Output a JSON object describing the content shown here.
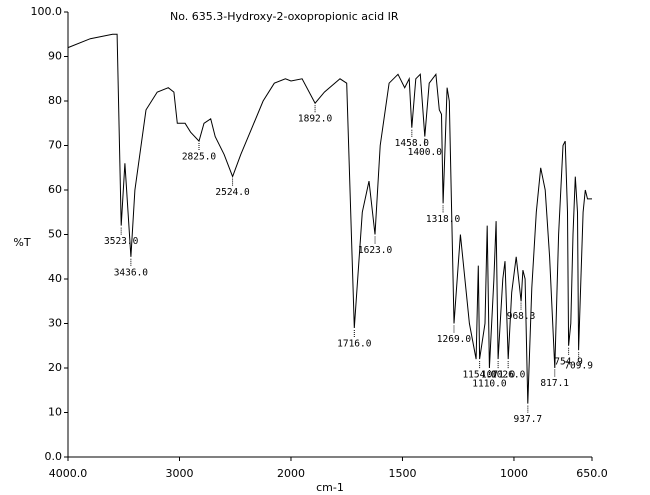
{
  "chart_data": {
    "type": "line",
    "title": "No. 635.3-Hydroxy-2-oxopropionic acid IR",
    "x_label": "cm-1",
    "y_label": "%T",
    "color": "#000000",
    "x_break": 2000,
    "xlim": [
      4000,
      650
    ],
    "ylim": [
      0,
      100
    ],
    "xticks": [
      {
        "value": 4000,
        "label": "4000.0"
      },
      3000,
      2000,
      1500,
      1000,
      {
        "value": 650,
        "label": "650.0"
      }
    ],
    "yticks": [
      {
        "value": 100,
        "label": "100.0"
      },
      90,
      80,
      70,
      60,
      50,
      40,
      30,
      20,
      10,
      {
        "value": 0,
        "label": "0.0"
      }
    ],
    "x": [
      4000,
      3800,
      3600,
      3560,
      3523,
      3490,
      3436,
      3400,
      3300,
      3200,
      3100,
      3050,
      3020,
      2950,
      2900,
      2825,
      2780,
      2720,
      2680,
      2600,
      2524,
      2450,
      2350,
      2250,
      2150,
      2050,
      2000,
      1950,
      1892,
      1850,
      1780,
      1750,
      1716,
      1680,
      1650,
      1623,
      1600,
      1560,
      1520,
      1490,
      1470,
      1458,
      1440,
      1420,
      1400,
      1380,
      1350,
      1335,
      1325,
      1318,
      1300,
      1290,
      1269,
      1240,
      1200,
      1170,
      1160,
      1154,
      1130,
      1120,
      1110,
      1090,
      1080,
      1071,
      1050,
      1040,
      1026,
      1010,
      990,
      968,
      960,
      950,
      937.7,
      920,
      900,
      880,
      860,
      840,
      817,
      800,
      780,
      770,
      760,
      754.9,
      745,
      735,
      725,
      715,
      709.9,
      700,
      690,
      680,
      670,
      650
    ],
    "values": [
      92,
      94,
      95,
      95,
      52,
      66,
      45,
      60,
      78,
      82,
      83,
      82,
      75,
      75,
      73,
      71,
      75,
      76,
      72,
      68,
      63,
      68,
      74,
      80,
      84,
      85,
      84.5,
      85,
      79.5,
      82,
      85,
      84,
      29,
      55,
      62,
      50,
      70,
      84,
      86,
      83,
      85,
      74,
      85,
      86,
      72,
      84,
      86,
      78,
      77,
      57,
      83,
      80,
      30,
      50,
      30,
      22,
      43,
      22,
      30,
      52,
      20,
      40,
      53,
      22,
      40,
      44,
      22,
      37,
      45,
      35,
      42,
      40,
      12,
      38,
      55,
      65,
      60,
      45,
      20,
      50,
      70,
      71,
      55,
      25,
      30,
      50,
      63,
      55,
      24,
      40,
      55,
      60,
      58,
      58
    ],
    "peaks": [
      {
        "x": 3523,
        "label": "3523.0"
      },
      {
        "x": 3436,
        "label": "3436.0"
      },
      {
        "x": 2825,
        "label": "2825.0"
      },
      {
        "x": 2524,
        "label": "2524.0"
      },
      {
        "x": 1892,
        "label": "1892.0"
      },
      {
        "x": 1716,
        "label": "1716.0"
      },
      {
        "x": 1623,
        "label": "1623.0"
      },
      {
        "x": 1458,
        "label": "1458.0"
      },
      {
        "x": 1400,
        "label": "1400.0"
      },
      {
        "x": 1318,
        "label": "1318.0"
      },
      {
        "x": 1269,
        "label": "1269.0"
      },
      {
        "x": 1154,
        "label": "1154.0"
      },
      {
        "x": 1110,
        "label": "1110.0"
      },
      {
        "x": 1071,
        "label": "1071.0"
      },
      {
        "x": 1026,
        "label": "1026.0"
      },
      {
        "x": 968.3,
        "label": "968.3"
      },
      {
        "x": 937.7,
        "label": "937.7"
      },
      {
        "x": 817.1,
        "label": "817.1"
      },
      {
        "x": 754.9,
        "label": "754.9"
      },
      {
        "x": 709.9,
        "label": "709.9"
      }
    ]
  }
}
